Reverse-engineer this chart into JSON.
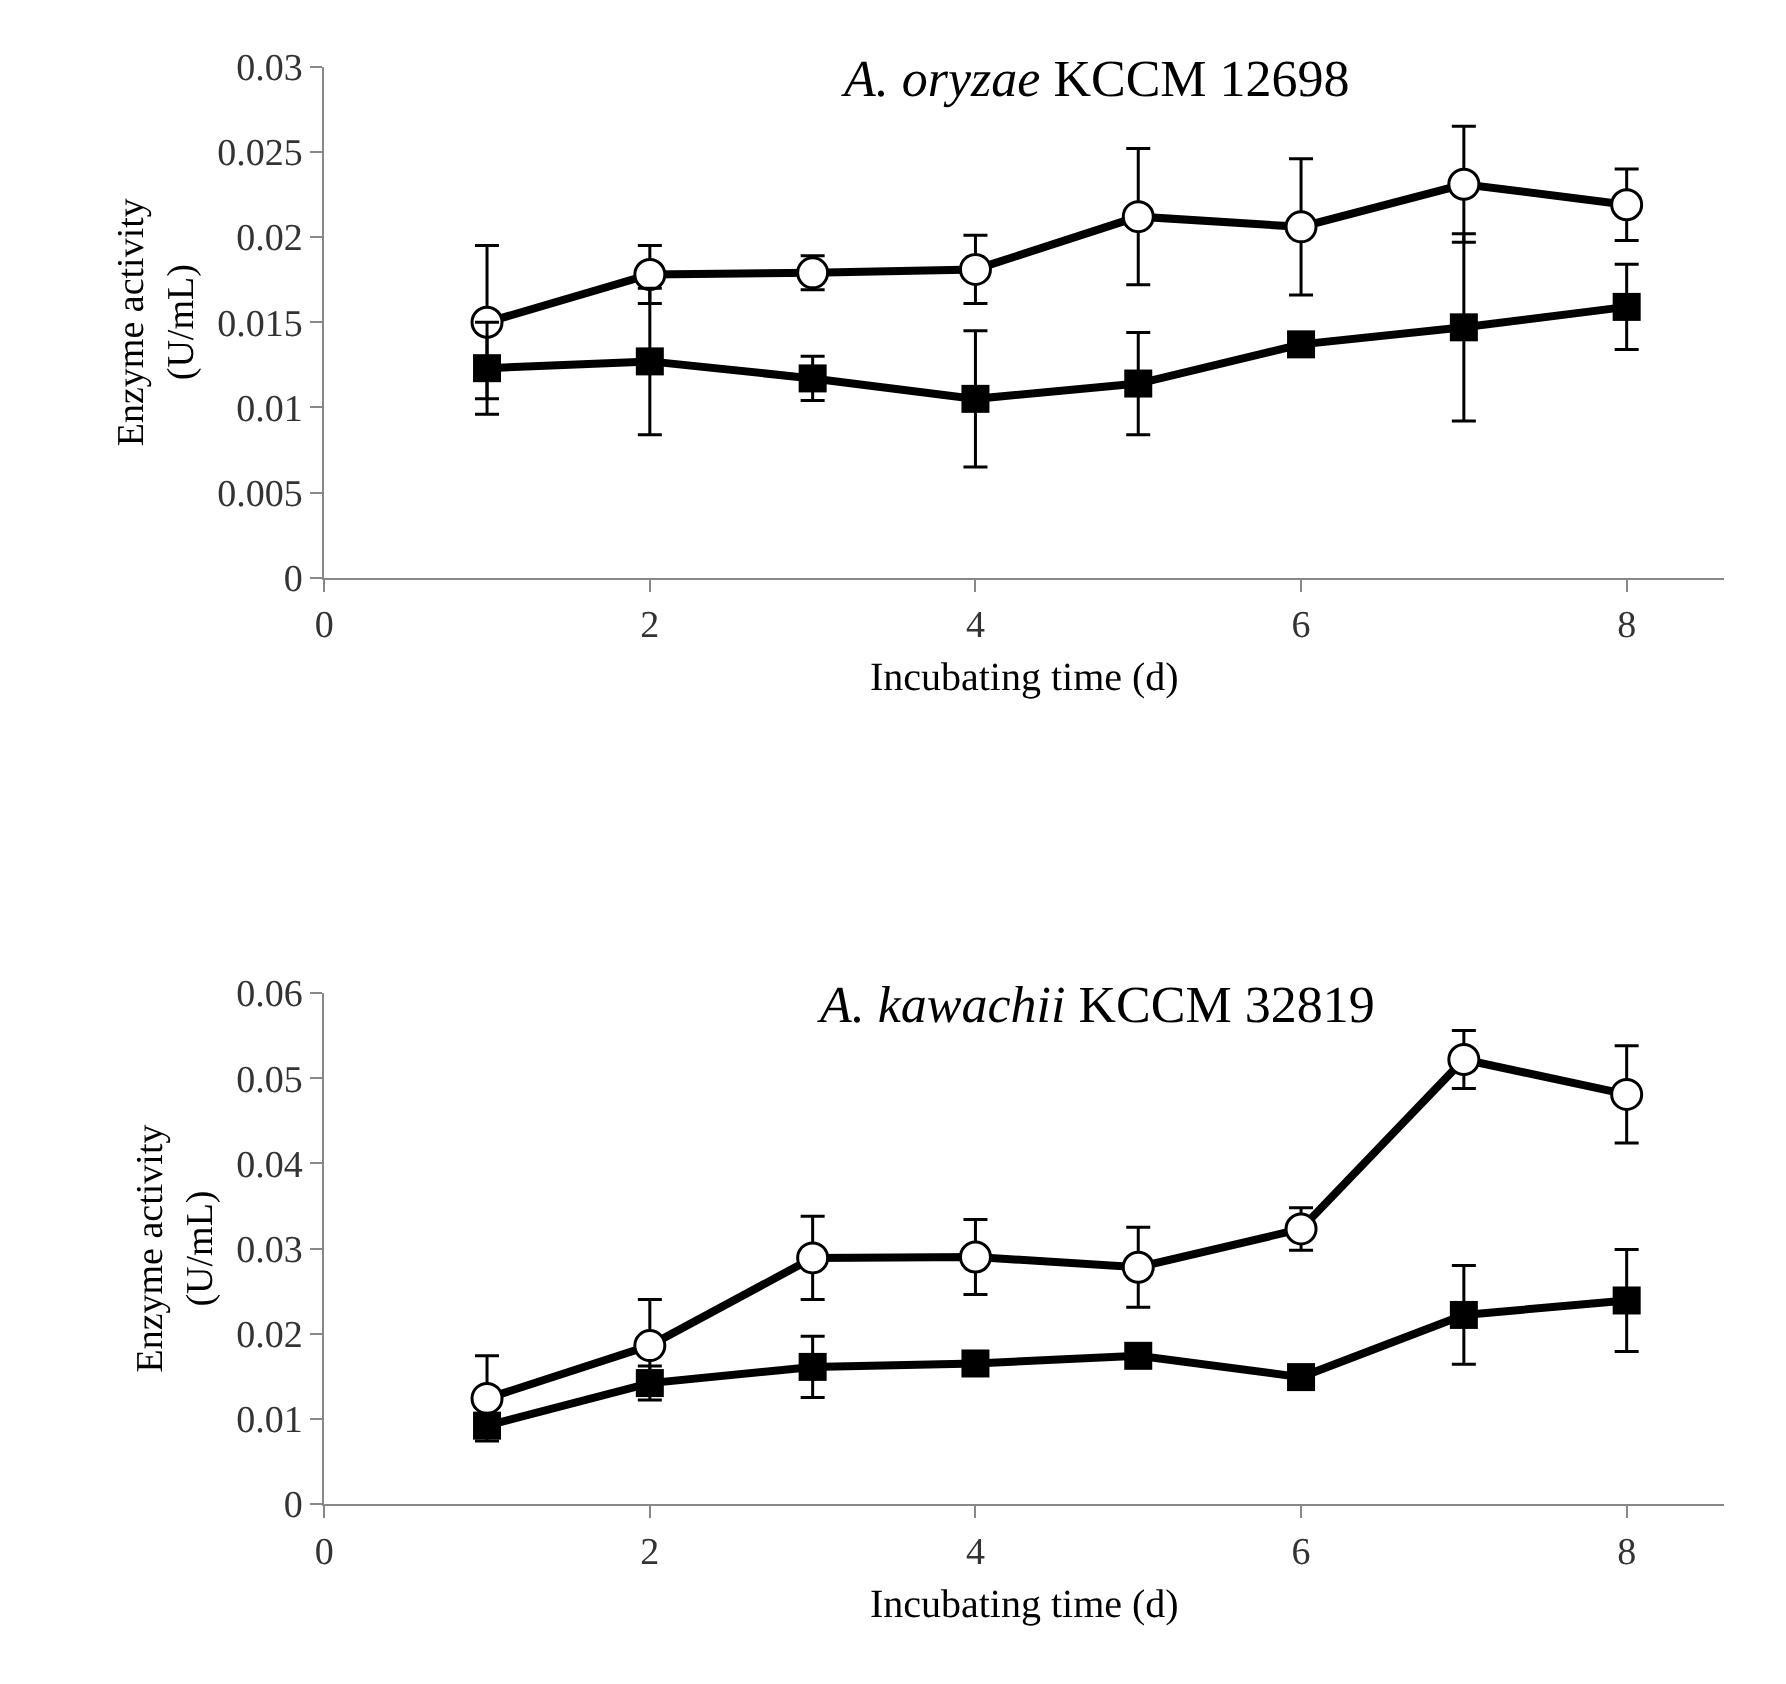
{
  "chart_data": [
    {
      "type": "line",
      "title": "A. oryzae KCCM 12698",
      "xlabel": "Incubating time (d)",
      "ylabel": "Enzyme activity\n(U/mL)",
      "x": [
        1,
        2,
        3,
        4,
        5,
        6,
        7,
        8
      ],
      "xlim": [
        0,
        8.6
      ],
      "xticks": [
        0,
        2,
        4,
        6,
        8
      ],
      "ylim": [
        0,
        0.03
      ],
      "yticks": [
        0,
        0.005,
        0.01,
        0.015,
        0.02,
        0.025,
        0.03
      ],
      "legend": false,
      "line_style": "solid",
      "series": [
        {
          "color": "#000000",
          "marker": "circle",
          "values": [
            0.015,
            0.0178,
            0.0179,
            0.0181,
            0.0212,
            0.0206,
            0.0231,
            0.0219
          ],
          "errors": [
            0.0045,
            0.0017,
            0.001,
            0.002,
            0.004,
            0.004,
            0.0034,
            0.0021
          ]
        },
        {
          "color": "#000000",
          "marker": "square",
          "values": [
            0.0123,
            0.0127,
            0.0117,
            0.0105,
            0.0114,
            0.0137,
            0.0147,
            0.0159
          ],
          "errors": [
            0.0027,
            0.0043,
            0.0013,
            0.004,
            0.003,
            null,
            0.0055,
            0.0025
          ]
        }
      ]
    },
    {
      "type": "line",
      "title": "A. kawachii KCCM 32819",
      "xlabel": "Incubating time (d)",
      "ylabel": "Enzyme activity\n(U/mL)",
      "x": [
        1,
        2,
        3,
        4,
        5,
        6,
        7,
        8
      ],
      "xlim": [
        0,
        8.6
      ],
      "xticks": [
        0,
        2,
        4,
        6,
        8
      ],
      "ylim": [
        0,
        0.06
      ],
      "yticks": [
        0,
        0.01,
        0.02,
        0.03,
        0.04,
        0.05,
        0.06
      ],
      "legend": false,
      "line_style": "solid",
      "series": [
        {
          "color": "#000000",
          "marker": "circle",
          "values": [
            0.0124,
            0.0186,
            0.0289,
            0.029,
            0.0278,
            0.0323,
            0.0522,
            0.0481
          ],
          "errors": [
            0.005,
            0.0054,
            0.0049,
            0.0044,
            0.0047,
            0.0025,
            0.0034,
            0.0057
          ]
        },
        {
          "color": "#000000",
          "marker": "square",
          "values": [
            0.0092,
            0.0142,
            0.0161,
            0.0165,
            0.0174,
            0.0149,
            0.0222,
            0.0239
          ],
          "errors": [
            null,
            0.002,
            0.0036,
            null,
            null,
            null,
            0.0058,
            0.006
          ]
        }
      ]
    }
  ]
}
